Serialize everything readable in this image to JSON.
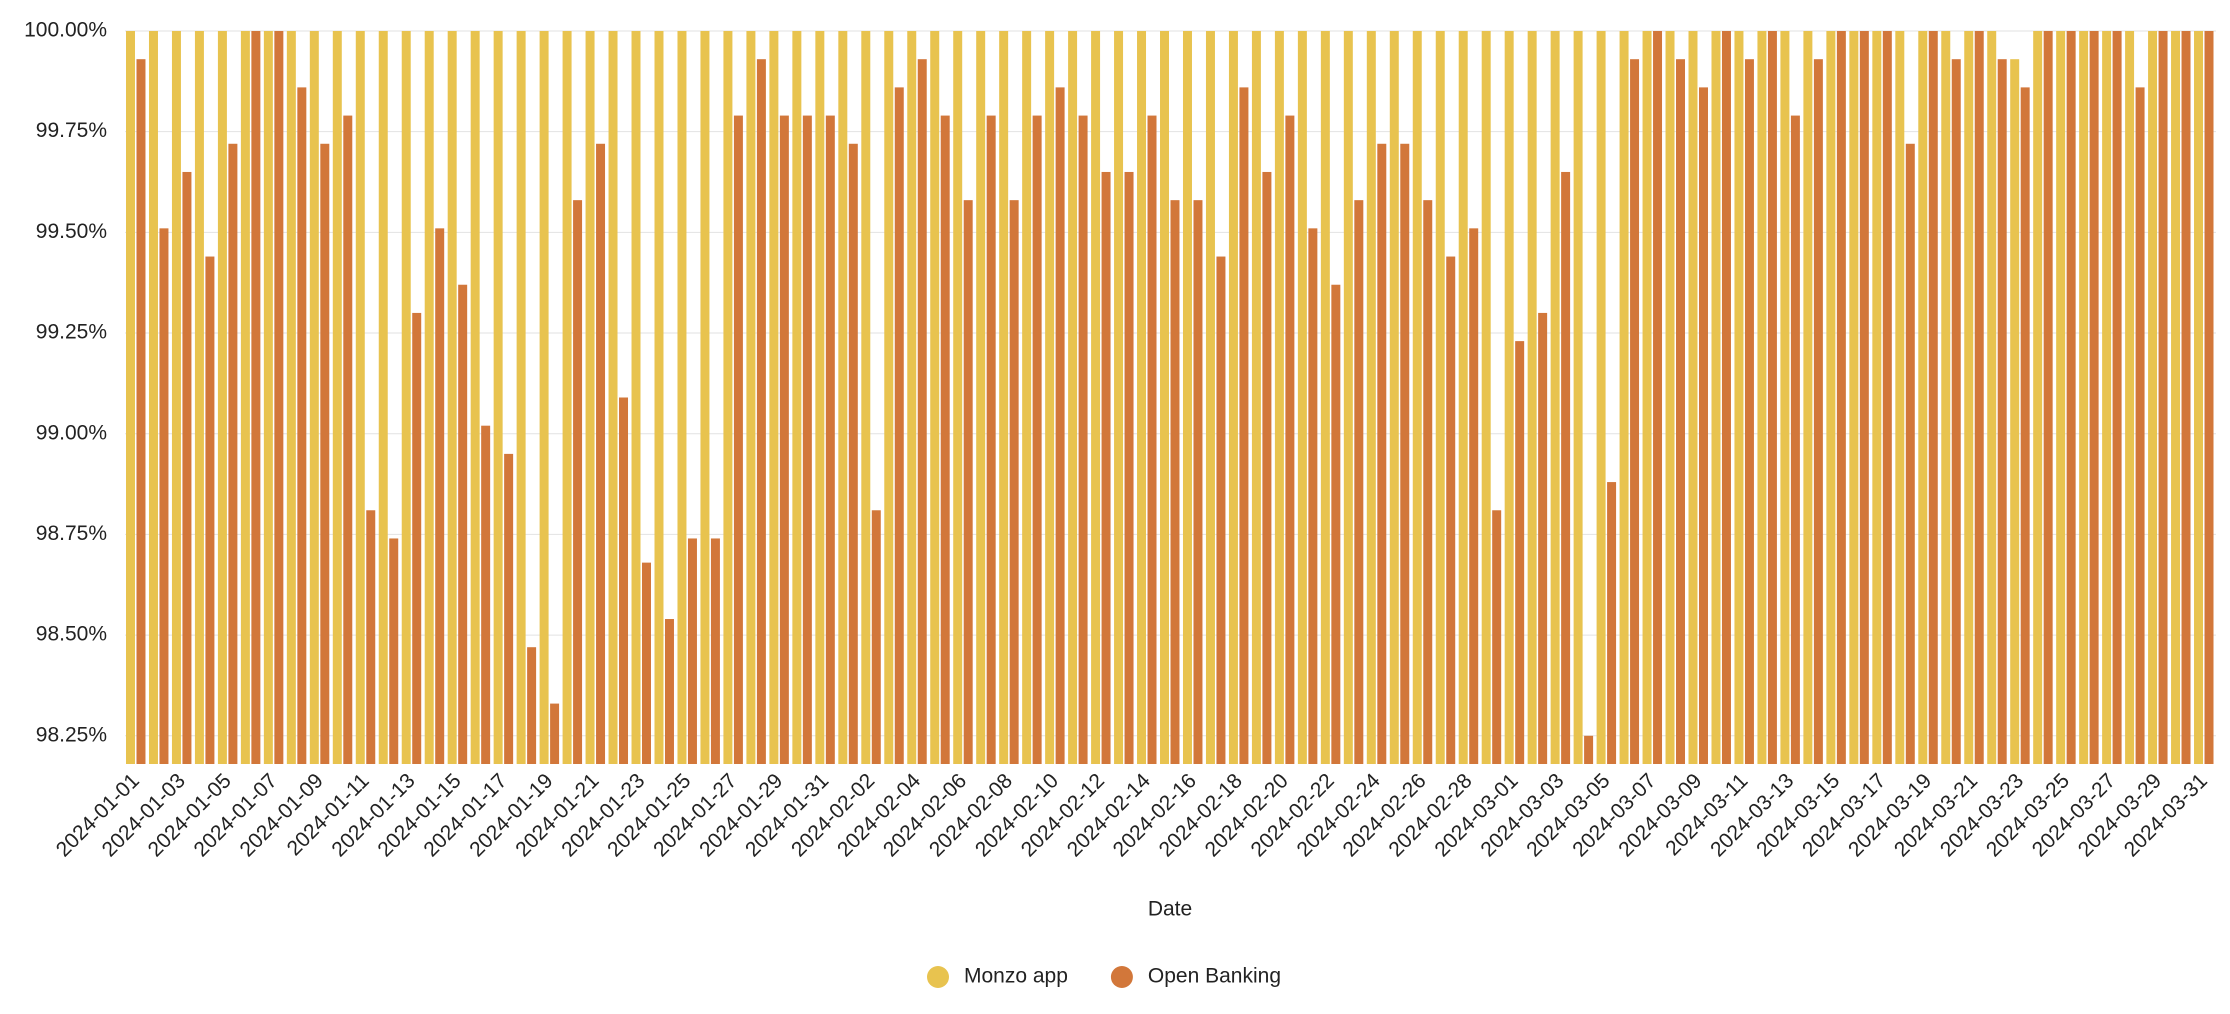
{
  "chart_data": {
    "type": "bar",
    "x_label": "Date",
    "categories": [
      "2024-01-01",
      null,
      "2024-01-03",
      null,
      "2024-01-05",
      null,
      "2024-01-07",
      null,
      "2024-01-09",
      null,
      "2024-01-11",
      null,
      "2024-01-13",
      null,
      "2024-01-15",
      null,
      "2024-01-17",
      null,
      "2024-01-19",
      null,
      "2024-01-21",
      null,
      "2024-01-23",
      null,
      "2024-01-25",
      null,
      "2024-01-27",
      null,
      "2024-01-29",
      null,
      "2024-01-31",
      null,
      "2024-02-02",
      null,
      "2024-02-04",
      null,
      "2024-02-06",
      null,
      "2024-02-08",
      null,
      "2024-02-10",
      null,
      "2024-02-12",
      null,
      "2024-02-14",
      null,
      "2024-02-16",
      null,
      "2024-02-18",
      null,
      "2024-02-20",
      null,
      "2024-02-22",
      null,
      "2024-02-24",
      null,
      "2024-02-26",
      null,
      "2024-02-28",
      null,
      "2024-03-01",
      null,
      "2024-03-03",
      null,
      "2024-03-05",
      null,
      "2024-03-07",
      null,
      "2024-03-09",
      null,
      "2024-03-11",
      null,
      "2024-03-13",
      null,
      "2024-03-15",
      null,
      "2024-03-17",
      null,
      "2024-03-19",
      null,
      "2024-03-21",
      null,
      "2024-03-23",
      null,
      "2024-03-25",
      null,
      "2024-03-27",
      null,
      "2024-03-29",
      null,
      "2024-03-31"
    ],
    "series": [
      {
        "name": "Monzo app",
        "color": "#E8C34F",
        "values": [
          100,
          100,
          100,
          100,
          100,
          100,
          100,
          100,
          100,
          100,
          100,
          100,
          100,
          100,
          100,
          100,
          100,
          100,
          100,
          100,
          100,
          100,
          100,
          100,
          100,
          100,
          100,
          100,
          100,
          100,
          100,
          100,
          100,
          100,
          100,
          100,
          100,
          100,
          100,
          100,
          100,
          100,
          100,
          100,
          100,
          100,
          100,
          100,
          100,
          100,
          100,
          100,
          100,
          100,
          100,
          100,
          100,
          100,
          100,
          100,
          100,
          100,
          100,
          100,
          100,
          100,
          100,
          100,
          100,
          100,
          100,
          100,
          100,
          100,
          100,
          100,
          100,
          100,
          100,
          100,
          100,
          100,
          99.93,
          100,
          100,
          100,
          100,
          100,
          100,
          100,
          100
        ]
      },
      {
        "name": "Open Banking",
        "color": "#D2773A",
        "values": [
          99.93,
          99.51,
          99.65,
          99.44,
          99.72,
          100,
          100,
          99.86,
          99.72,
          99.79,
          98.81,
          98.74,
          99.3,
          99.51,
          99.37,
          99.02,
          98.95,
          98.47,
          98.33,
          99.58,
          99.72,
          99.09,
          98.68,
          98.54,
          98.74,
          98.74,
          99.79,
          99.93,
          99.79,
          99.79,
          99.79,
          99.72,
          98.81,
          99.86,
          99.93,
          99.79,
          99.58,
          99.79,
          99.58,
          99.79,
          99.86,
          99.79,
          99.65,
          99.65,
          99.79,
          99.58,
          99.58,
          99.44,
          99.86,
          99.65,
          99.79,
          99.51,
          99.37,
          99.58,
          99.72,
          99.72,
          99.58,
          99.44,
          99.51,
          98.81,
          99.23,
          99.3,
          99.65,
          98.25,
          98.88,
          99.93,
          100,
          99.93,
          99.86,
          100,
          99.93,
          100,
          99.79,
          99.93,
          100,
          100,
          100,
          99.72,
          100,
          99.93,
          100,
          99.93,
          99.86,
          100,
          100,
          100,
          100,
          99.86,
          100,
          100,
          100
        ]
      }
    ],
    "ylim": [
      98.18,
      100
    ],
    "yticks": [
      {
        "value": 98.25,
        "label": "98.25%"
      },
      {
        "value": 98.5,
        "label": "98.50%"
      },
      {
        "value": 98.75,
        "label": "98.75%"
      },
      {
        "value": 99,
        "label": "99.00%"
      },
      {
        "value": 99.25,
        "label": "99.25%"
      },
      {
        "value": 99.5,
        "label": "99.50%"
      },
      {
        "value": 99.75,
        "label": "99.75%"
      },
      {
        "value": 100,
        "label": "100.00%"
      }
    ],
    "grid": true
  }
}
